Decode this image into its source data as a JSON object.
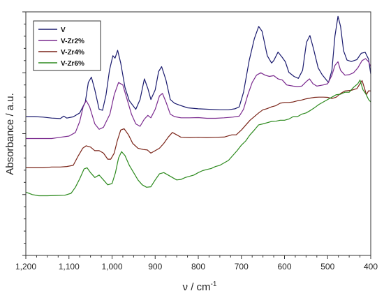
{
  "chart_data": {
    "type": "line",
    "xlabel": "ν / cm",
    "xlabel_sup": "-1",
    "ylabel": "Absorbance / a.u.",
    "xlim": [
      1200,
      400
    ],
    "x_reversed": true,
    "yticks_labeled": false,
    "xticks": [
      {
        "value": 1200,
        "label": "1,200"
      },
      {
        "value": 1100,
        "label": "1,100"
      },
      {
        "value": 1000,
        "label": "1,000"
      },
      {
        "value": 900,
        "label": "900"
      },
      {
        "value": 800,
        "label": "800"
      },
      {
        "value": 700,
        "label": "700"
      },
      {
        "value": 600,
        "label": "600"
      },
      {
        "value": 500,
        "label": "500"
      },
      {
        "value": 400,
        "label": "400"
      }
    ],
    "ylim": [
      0,
      100
    ],
    "grid": false,
    "legend_position": "top-left",
    "series": [
      {
        "name": "V",
        "color": "#1a1a6e",
        "points": [
          [
            1200,
            57
          ],
          [
            1180,
            57
          ],
          [
            1160,
            56.8
          ],
          [
            1140,
            56.4
          ],
          [
            1120,
            56.2
          ],
          [
            1112,
            57.2
          ],
          [
            1105,
            56.4
          ],
          [
            1090,
            56.9
          ],
          [
            1075,
            58.5
          ],
          [
            1062,
            63
          ],
          [
            1055,
            71
          ],
          [
            1048,
            73.2
          ],
          [
            1040,
            68
          ],
          [
            1030,
            60
          ],
          [
            1022,
            59.6
          ],
          [
            1014,
            66
          ],
          [
            1006,
            76
          ],
          [
            998,
            82
          ],
          [
            993,
            81
          ],
          [
            987,
            84.2
          ],
          [
            980,
            79
          ],
          [
            970,
            69
          ],
          [
            960,
            63.5
          ],
          [
            945,
            60
          ],
          [
            935,
            64
          ],
          [
            925,
            72.5
          ],
          [
            917,
            68.5
          ],
          [
            910,
            64
          ],
          [
            900,
            68
          ],
          [
            892,
            75.5
          ],
          [
            885,
            77.5
          ],
          [
            875,
            72
          ],
          [
            865,
            64
          ],
          [
            855,
            62.5
          ],
          [
            845,
            61.8
          ],
          [
            825,
            60.6
          ],
          [
            800,
            60.2
          ],
          [
            775,
            60
          ],
          [
            750,
            59.8
          ],
          [
            730,
            59.8
          ],
          [
            715,
            60.2
          ],
          [
            705,
            61
          ],
          [
            695,
            67
          ],
          [
            682,
            80
          ],
          [
            670,
            89
          ],
          [
            660,
            94
          ],
          [
            652,
            92
          ],
          [
            640,
            82
          ],
          [
            630,
            79
          ],
          [
            625,
            80
          ],
          [
            615,
            83.5
          ],
          [
            606,
            81.5
          ],
          [
            598,
            79.5
          ],
          [
            590,
            75.2
          ],
          [
            578,
            73.5
          ],
          [
            568,
            72.7
          ],
          [
            558,
            76
          ],
          [
            549,
            87.5
          ],
          [
            541,
            90.3
          ],
          [
            533,
            85
          ],
          [
            522,
            77
          ],
          [
            513,
            74.3
          ],
          [
            505,
            72.5
          ],
          [
            498,
            71
          ],
          [
            490,
            76
          ],
          [
            483,
            90
          ],
          [
            476,
            98.2
          ],
          [
            470,
            94
          ],
          [
            463,
            84
          ],
          [
            455,
            80.2
          ],
          [
            445,
            79.6
          ],
          [
            432,
            80.4
          ],
          [
            422,
            83
          ],
          [
            413,
            83.4
          ],
          [
            405,
            80.6
          ],
          [
            400,
            74.5
          ]
        ]
      },
      {
        "name": "V-Zr2%",
        "color": "#7a2a8e",
        "points": [
          [
            1200,
            48
          ],
          [
            1180,
            48
          ],
          [
            1160,
            48
          ],
          [
            1140,
            48
          ],
          [
            1120,
            48.5
          ],
          [
            1100,
            49
          ],
          [
            1085,
            50.5
          ],
          [
            1075,
            55
          ],
          [
            1067,
            61
          ],
          [
            1060,
            63.6
          ],
          [
            1052,
            61
          ],
          [
            1040,
            54
          ],
          [
            1030,
            51.8
          ],
          [
            1020,
            52.6
          ],
          [
            1005,
            58
          ],
          [
            995,
            66
          ],
          [
            985,
            71
          ],
          [
            975,
            70
          ],
          [
            965,
            64
          ],
          [
            955,
            58
          ],
          [
            945,
            54
          ],
          [
            935,
            53
          ],
          [
            925,
            56
          ],
          [
            917,
            57.5
          ],
          [
            910,
            56.5
          ],
          [
            900,
            60
          ],
          [
            890,
            65.5
          ],
          [
            883,
            66.5
          ],
          [
            875,
            63
          ],
          [
            865,
            58
          ],
          [
            855,
            57
          ],
          [
            840,
            56.5
          ],
          [
            820,
            56.5
          ],
          [
            800,
            56.6
          ],
          [
            780,
            56.3
          ],
          [
            760,
            56.3
          ],
          [
            740,
            56.5
          ],
          [
            720,
            56.8
          ],
          [
            705,
            57.2
          ],
          [
            695,
            60
          ],
          [
            685,
            66
          ],
          [
            675,
            71
          ],
          [
            665,
            74
          ],
          [
            655,
            75
          ],
          [
            645,
            74
          ],
          [
            635,
            73.5
          ],
          [
            625,
            73.8
          ],
          [
            615,
            72.5
          ],
          [
            605,
            72
          ],
          [
            595,
            70
          ],
          [
            580,
            69.5
          ],
          [
            570,
            69.3
          ],
          [
            560,
            69.5
          ],
          [
            550,
            71.3
          ],
          [
            542,
            72.5
          ],
          [
            534,
            70.5
          ],
          [
            525,
            69.5
          ],
          [
            510,
            70
          ],
          [
            500,
            70.5
          ],
          [
            490,
            74
          ],
          [
            483,
            78
          ],
          [
            476,
            79.5
          ],
          [
            470,
            76
          ],
          [
            460,
            74
          ],
          [
            450,
            74.2
          ],
          [
            440,
            75
          ],
          [
            430,
            77
          ],
          [
            420,
            80
          ],
          [
            412,
            80.8
          ],
          [
            405,
            79.5
          ],
          [
            400,
            77.5
          ]
        ]
      },
      {
        "name": "V-Zr4%",
        "color": "#7a2418",
        "points": [
          [
            1200,
            36
          ],
          [
            1180,
            36
          ],
          [
            1160,
            36
          ],
          [
            1140,
            36.3
          ],
          [
            1120,
            36.3
          ],
          [
            1105,
            36.5
          ],
          [
            1090,
            37
          ],
          [
            1078,
            41
          ],
          [
            1068,
            44
          ],
          [
            1060,
            45
          ],
          [
            1050,
            44.5
          ],
          [
            1040,
            43
          ],
          [
            1030,
            43
          ],
          [
            1020,
            42
          ],
          [
            1010,
            39.5
          ],
          [
            1003,
            39.5
          ],
          [
            995,
            42
          ],
          [
            988,
            47
          ],
          [
            980,
            51.5
          ],
          [
            972,
            52
          ],
          [
            962,
            49.5
          ],
          [
            952,
            46
          ],
          [
            940,
            44
          ],
          [
            928,
            43.5
          ],
          [
            918,
            43.3
          ],
          [
            910,
            42
          ],
          [
            900,
            43
          ],
          [
            890,
            44
          ],
          [
            880,
            46
          ],
          [
            870,
            48.5
          ],
          [
            860,
            50.5
          ],
          [
            850,
            49.5
          ],
          [
            840,
            48.5
          ],
          [
            820,
            48.4
          ],
          [
            800,
            48.5
          ],
          [
            780,
            48.4
          ],
          [
            760,
            48.5
          ],
          [
            740,
            48.6
          ],
          [
            722,
            49.5
          ],
          [
            712,
            49.5
          ],
          [
            700,
            51.5
          ],
          [
            690,
            53.5
          ],
          [
            680,
            55.5
          ],
          [
            670,
            57
          ],
          [
            660,
            58.5
          ],
          [
            650,
            59.8
          ],
          [
            640,
            60.3
          ],
          [
            630,
            61
          ],
          [
            620,
            61.5
          ],
          [
            610,
            62.5
          ],
          [
            600,
            62.8
          ],
          [
            590,
            62.8
          ],
          [
            580,
            63
          ],
          [
            570,
            63.5
          ],
          [
            560,
            63.8
          ],
          [
            550,
            64.3
          ],
          [
            540,
            64.6
          ],
          [
            530,
            64.9
          ],
          [
            520,
            65
          ],
          [
            510,
            65
          ],
          [
            500,
            64.9
          ],
          [
            490,
            64.4
          ],
          [
            480,
            65
          ],
          [
            470,
            66.5
          ],
          [
            460,
            67.5
          ],
          [
            445,
            67.8
          ],
          [
            432,
            68.5
          ],
          [
            425,
            70.5
          ],
          [
            420,
            71.8
          ],
          [
            415,
            69
          ],
          [
            410,
            66
          ],
          [
            405,
            67.6
          ],
          [
            400,
            67.5
          ]
        ]
      },
      {
        "name": "V-Zr6%",
        "color": "#2d8a1e",
        "points": [
          [
            1200,
            26
          ],
          [
            1185,
            25
          ],
          [
            1170,
            24.5
          ],
          [
            1150,
            24.5
          ],
          [
            1130,
            24.6
          ],
          [
            1110,
            24.7
          ],
          [
            1095,
            25.5
          ],
          [
            1085,
            28
          ],
          [
            1075,
            31.5
          ],
          [
            1065,
            35.5
          ],
          [
            1058,
            36
          ],
          [
            1050,
            34
          ],
          [
            1040,
            32
          ],
          [
            1030,
            33
          ],
          [
            1020,
            31
          ],
          [
            1010,
            29
          ],
          [
            1000,
            29.5
          ],
          [
            992,
            34
          ],
          [
            985,
            40
          ],
          [
            978,
            42.6
          ],
          [
            970,
            41
          ],
          [
            960,
            37
          ],
          [
            950,
            34
          ],
          [
            940,
            31
          ],
          [
            930,
            29
          ],
          [
            920,
            28
          ],
          [
            910,
            28.2
          ],
          [
            900,
            31
          ],
          [
            890,
            33.5
          ],
          [
            880,
            34
          ],
          [
            870,
            33
          ],
          [
            860,
            32
          ],
          [
            850,
            31
          ],
          [
            840,
            31.2
          ],
          [
            830,
            32
          ],
          [
            820,
            32.5
          ],
          [
            810,
            33
          ],
          [
            800,
            34
          ],
          [
            790,
            34.8
          ],
          [
            780,
            35.3
          ],
          [
            770,
            35.7
          ],
          [
            760,
            36.5
          ],
          [
            750,
            37
          ],
          [
            740,
            38
          ],
          [
            730,
            39
          ],
          [
            720,
            41
          ],
          [
            710,
            43
          ],
          [
            700,
            45.3
          ],
          [
            690,
            47
          ],
          [
            680,
            49.5
          ],
          [
            670,
            51.5
          ],
          [
            660,
            53.6
          ],
          [
            650,
            54
          ],
          [
            640,
            54.5
          ],
          [
            630,
            55
          ],
          [
            620,
            55.1
          ],
          [
            610,
            55.5
          ],
          [
            600,
            55.5
          ],
          [
            590,
            56
          ],
          [
            580,
            57
          ],
          [
            570,
            57
          ],
          [
            560,
            58
          ],
          [
            550,
            58.5
          ],
          [
            540,
            59.5
          ],
          [
            530,
            60.7
          ],
          [
            520,
            62
          ],
          [
            510,
            63
          ],
          [
            500,
            64
          ],
          [
            490,
            65
          ],
          [
            480,
            66
          ],
          [
            470,
            66.2
          ],
          [
            460,
            67
          ],
          [
            450,
            67
          ],
          [
            440,
            69
          ],
          [
            430,
            70.5
          ],
          [
            425,
            72
          ],
          [
            418,
            68
          ],
          [
            412,
            66.5
          ],
          [
            405,
            64
          ],
          [
            400,
            63
          ]
        ]
      }
    ]
  }
}
